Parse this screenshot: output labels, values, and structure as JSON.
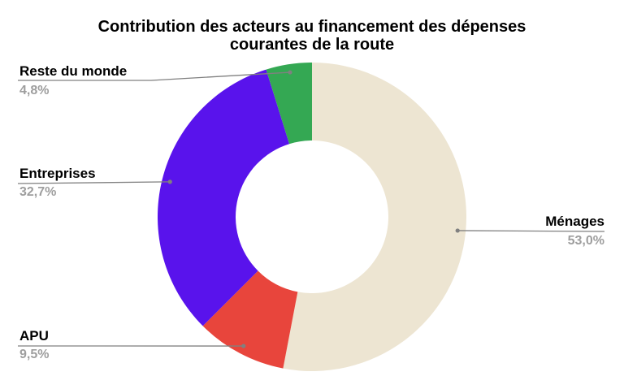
{
  "chart_data": {
    "type": "pie",
    "title": "Contribution des acteurs au financement des dépenses courantes de la route",
    "title_lines": [
      "Contribution des acteurs au financement des dépenses",
      "courantes de la route"
    ],
    "donut": true,
    "categories": [
      "Ménages",
      "APU",
      "Entreprises",
      "Reste du monde"
    ],
    "values": [
      53.0,
      9.5,
      32.7,
      4.8
    ],
    "value_labels": [
      "53,0%",
      "9,5%",
      "32,7%",
      "4,8%"
    ],
    "colors": [
      "#ede5d2",
      "#e8453c",
      "#5913ec",
      "#34a853"
    ],
    "label_color": "#000000",
    "value_color": "#9e9e9e",
    "leader_color": "#808080"
  }
}
